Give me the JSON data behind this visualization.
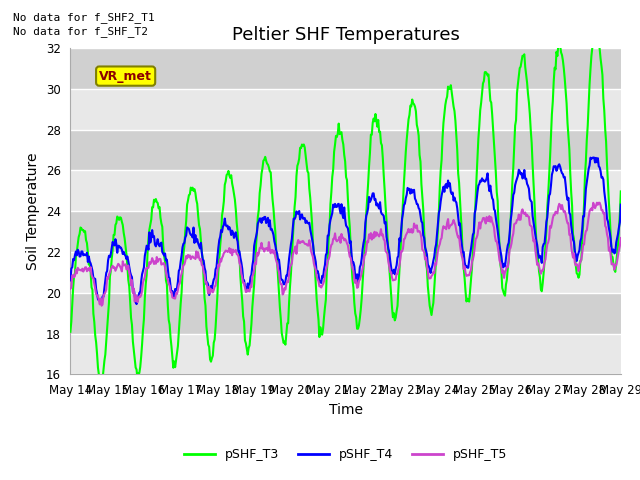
{
  "title": "Peltier SHF Temperatures",
  "xlabel": "Time",
  "ylabel": "Soil Temperature",
  "ylim": [
    16,
    32
  ],
  "xlim": [
    14,
    29
  ],
  "yticks": [
    16,
    18,
    20,
    22,
    24,
    26,
    28,
    30,
    32
  ],
  "x_ticks": [
    14,
    15,
    16,
    17,
    18,
    19,
    20,
    21,
    22,
    23,
    24,
    25,
    26,
    27,
    28,
    29
  ],
  "x_tick_labels": [
    "May 14",
    "May 15",
    "May 16",
    "May 17",
    "May 18",
    "May 19",
    "May 20",
    "May 21",
    "May 22",
    "May 23",
    "May 24",
    "May 25",
    "May 26",
    "May 27",
    "May 28",
    "May 29"
  ],
  "no_data_text": [
    "No data for f_SHF2_T1",
    "No data for f_SHF_T2"
  ],
  "vr_met_label": "VR_met",
  "legend_labels": [
    "pSHF_T3",
    "pSHF_T4",
    "pSHF_T5"
  ],
  "colors": {
    "pSHF_T3": "#00ff00",
    "pSHF_T4": "#0000ff",
    "pSHF_T5": "#cc44cc"
  },
  "bg_color_light": "#e8e8e8",
  "bg_color_dark": "#d0d0d0",
  "grid_color": "#ffffff",
  "fig_bg": "#ffffff",
  "title_fontsize": 13,
  "label_fontsize": 10,
  "tick_fontsize": 8.5,
  "lw_T3": 1.5,
  "lw_T4": 1.5,
  "lw_T5": 1.5
}
